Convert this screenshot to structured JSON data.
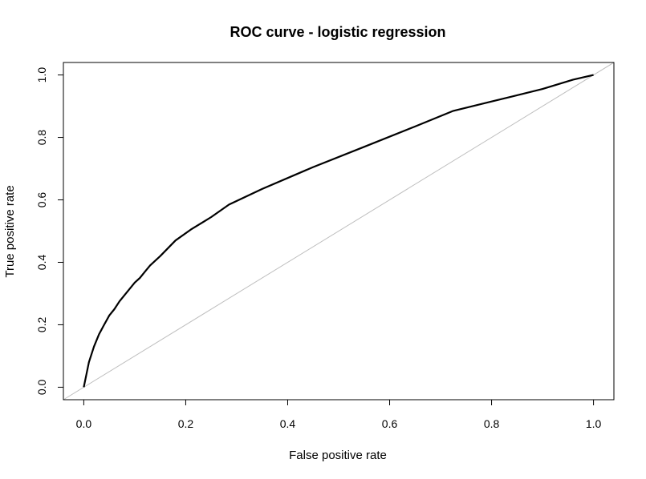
{
  "chart_data": {
    "type": "line",
    "title": "ROC curve - logistic regression",
    "xlabel": "False positive rate",
    "ylabel": "True positive rate",
    "xlim": [
      -0.04,
      1.04
    ],
    "ylim": [
      -0.04,
      1.04
    ],
    "x_ticks": [
      "0.0",
      "0.2",
      "0.4",
      "0.6",
      "0.8",
      "1.0"
    ],
    "y_ticks": [
      "0.0",
      "0.2",
      "0.4",
      "0.6",
      "0.8",
      "1.0"
    ],
    "grid": false,
    "series": [
      {
        "color": "#000000",
        "x": [
          0.0,
          0.005,
          0.01,
          0.02,
          0.03,
          0.04,
          0.05,
          0.06,
          0.07,
          0.08,
          0.09,
          0.1,
          0.11,
          0.12,
          0.13,
          0.15,
          0.18,
          0.21,
          0.25,
          0.285,
          0.35,
          0.45,
          0.55,
          0.65,
          0.725,
          0.8,
          0.9,
          0.96,
          1.0
        ],
        "y": [
          0.0,
          0.04,
          0.08,
          0.13,
          0.17,
          0.2,
          0.23,
          0.25,
          0.275,
          0.295,
          0.315,
          0.335,
          0.35,
          0.37,
          0.39,
          0.42,
          0.47,
          0.505,
          0.545,
          0.585,
          0.635,
          0.705,
          0.77,
          0.835,
          0.885,
          0.915,
          0.955,
          0.985,
          1.0
        ]
      }
    ],
    "reference_line": {
      "x": [
        0,
        1
      ],
      "y": [
        0,
        1
      ],
      "color": "#bebebe"
    }
  }
}
